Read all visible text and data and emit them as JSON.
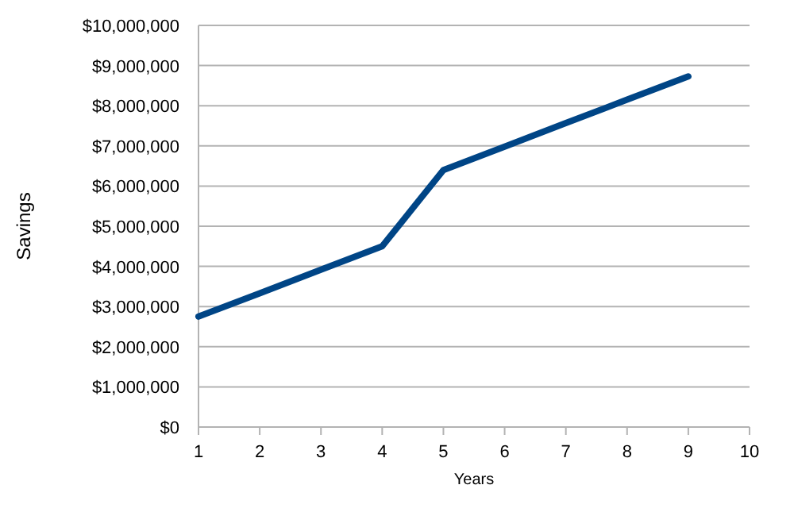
{
  "chart_data": {
    "type": "line",
    "xlabel": "Years",
    "ylabel": "Savings",
    "x": [
      1,
      2,
      3,
      4,
      5,
      6,
      7,
      8,
      9
    ],
    "series": [
      {
        "color": "#004586",
        "values": [
          2750000,
          3330000,
          3920000,
          4500000,
          6400000,
          6980000,
          7570000,
          8150000,
          8730000
        ]
      }
    ],
    "xlim": [
      1,
      10
    ],
    "xticks": [
      1,
      2,
      3,
      4,
      5,
      6,
      7,
      8,
      9,
      10
    ],
    "ylim": [
      0,
      10000000
    ],
    "yticks": [
      {
        "value": 0,
        "label": "$0"
      },
      {
        "value": 1000000,
        "label": "$1,000,000"
      },
      {
        "value": 2000000,
        "label": "$2,000,000"
      },
      {
        "value": 3000000,
        "label": "$3,000,000"
      },
      {
        "value": 4000000,
        "label": "$4,000,000"
      },
      {
        "value": 5000000,
        "label": "$5,000,000"
      },
      {
        "value": 6000000,
        "label": "$6,000,000"
      },
      {
        "value": 7000000,
        "label": "$7,000,000"
      },
      {
        "value": 8000000,
        "label": "$8,000,000"
      },
      {
        "value": 9000000,
        "label": "$9,000,000"
      },
      {
        "value": 10000000,
        "label": "$10,000,000"
      }
    ],
    "grid": "y",
    "marker": "none",
    "line_style": "solid"
  }
}
